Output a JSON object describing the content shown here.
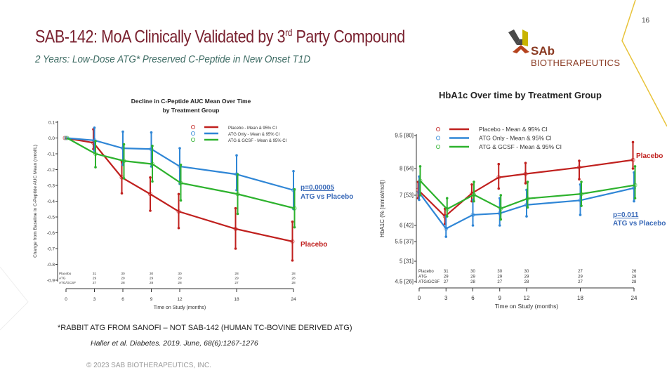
{
  "slide": {
    "page_number": "16",
    "title_pre": "SAB-142: MoA Clinically Validated by 3",
    "title_sup": "rd",
    "title_post": " Party Compound",
    "subtitle": "2 Years: Low-Dose ATG* Preserved C-Peptide in New Onset T1D",
    "logo": {
      "brand": "SAb",
      "name": "BIOTHERAPEUTICS"
    },
    "footnote": "*RABBIT ATG FROM SANOFI – NOT SAB-142 (HUMAN TC-BOVINE DERIVED ATG)",
    "citation": "Haller et al. Diabetes. 2019. June, 68(6):1267-1276",
    "copyright": "© 2023 SAB BIOTHERAPEUTICS, INC.",
    "colors": {
      "title": "#7a2230",
      "subtitle": "#3d6b63",
      "accent_line": "#e8c33a",
      "brand": "#8a3a22"
    }
  },
  "chart_data": [
    {
      "type": "line",
      "title": [
        "Decline in C-Peptide AUC Mean Over Time",
        "by Treatment Group"
      ],
      "xlabel": "Time on Study (months)",
      "ylabel": "Change from Baseline in C-Peptide AUC Mean (nmol/L)",
      "x": [
        0,
        3,
        6,
        9,
        12,
        18,
        24
      ],
      "x_ticks": [
        "0",
        "3",
        "6",
        "9",
        "12",
        "18",
        "24"
      ],
      "y_ticks": [
        "0.1",
        "0.0",
        "-0.1",
        "-0.2",
        "-0.3",
        "-0.4",
        "-0.5",
        "-0.6",
        "-0.7",
        "-0.8",
        "-0.9"
      ],
      "ylim": [
        -0.9,
        0.1
      ],
      "legend_position": "top-right",
      "grid": false,
      "series": [
        {
          "name": "Placebo - Mean & 95% CI",
          "color": "#c0201e",
          "values": [
            0,
            -0.03,
            -0.25,
            -0.355,
            -0.465,
            -0.575,
            -0.655
          ],
          "ci_low": [
            0,
            -0.07,
            -0.35,
            -0.46,
            -0.57,
            -0.7,
            -0.775
          ],
          "ci_high": [
            0,
            0.055,
            -0.15,
            -0.25,
            -0.355,
            -0.445,
            -0.53
          ]
        },
        {
          "name": "ATG Only - Mean & 95% CI",
          "color": "#2f86d6",
          "values": [
            0,
            -0.015,
            -0.065,
            -0.07,
            -0.18,
            -0.23,
            -0.33
          ],
          "ci_low": [
            0,
            -0.08,
            -0.17,
            -0.18,
            -0.29,
            -0.33,
            -0.45
          ],
          "ci_high": [
            0,
            0.065,
            0.04,
            0.035,
            -0.065,
            -0.11,
            -0.21
          ]
        },
        {
          "name": "ATG & GCSF - Mean & 95% CI",
          "color": "#2db22d",
          "values": [
            0,
            -0.1,
            -0.145,
            -0.165,
            -0.285,
            -0.355,
            -0.445
          ],
          "ci_low": [
            0,
            -0.185,
            -0.255,
            -0.275,
            -0.395,
            -0.48,
            -0.565
          ],
          "ci_high": [
            0,
            -0.02,
            -0.04,
            -0.05,
            -0.17,
            -0.23,
            -0.325
          ]
        }
      ],
      "n_table": [
        {
          "label": "Placebo",
          "counts": [
            "31",
            "30",
            "30",
            "30",
            "28",
            "28"
          ]
        },
        {
          "label": "ATG",
          "counts": [
            "29",
            "29",
            "29",
            "29",
            "29",
            "28"
          ]
        },
        {
          "label": "ATG/GCSF",
          "counts": [
            "27",
            "28",
            "28",
            "28",
            "27",
            "28"
          ]
        }
      ],
      "annotations": [
        {
          "text": "p=0.00005",
          "color": "#3a6ab8",
          "underline": true
        },
        {
          "text": "ATG vs Placebo",
          "color": "#3a6ab8"
        },
        {
          "text": "Placebo",
          "color": "#c0201e"
        }
      ]
    },
    {
      "type": "line",
      "title": [
        "HbA1c Over time by Treatment Group"
      ],
      "xlabel": "Time on Study (months)",
      "ylabel": "HbA1C (% [mmol/mol])",
      "x": [
        0,
        3,
        6,
        9,
        12,
        18,
        24
      ],
      "x_ticks": [
        "0",
        "3",
        "6",
        "9",
        "12",
        "18",
        "24"
      ],
      "y_tick_values": [
        9.5,
        8,
        7,
        6,
        5.5,
        5,
        4.5
      ],
      "y_ticks": [
        "9.5 [80]",
        "8 [64]",
        "7 [53]",
        "6 [42]",
        "5.5 [37]",
        "5 [31]",
        "4.5 [26]"
      ],
      "ylim": [
        4.5,
        9.5
      ],
      "legend_position": "top-left",
      "grid": false,
      "series": [
        {
          "name": "Placebo - Mean & 95% CI",
          "color": "#c0201e",
          "values": [
            7.2,
            6.3,
            7.07,
            7.67,
            7.8,
            8.05,
            8.39
          ],
          "ci_low": [
            6.9,
            6.05,
            6.8,
            7.25,
            7.45,
            7.6,
            8.0
          ],
          "ci_high": [
            7.5,
            6.55,
            7.4,
            8.2,
            8.25,
            8.35,
            9.2
          ]
        },
        {
          "name": "ATG Only - Mean & 95% CI",
          "color": "#2f86d6",
          "values": [
            7.1,
            5.9,
            6.35,
            6.4,
            6.68,
            6.83,
            7.27
          ],
          "ci_low": [
            6.85,
            5.65,
            6.0,
            6.0,
            6.3,
            6.35,
            6.8
          ],
          "ci_high": [
            7.7,
            6.3,
            6.85,
            6.9,
            7.2,
            7.4,
            7.85
          ]
        },
        {
          "name": "ATG & GCSF - Mean & 95% CI",
          "color": "#2db22d",
          "values": [
            7.54,
            6.54,
            7.02,
            6.56,
            6.89,
            7.05,
            7.38
          ],
          "ci_low": [
            7.0,
            6.3,
            6.8,
            6.2,
            6.6,
            6.65,
            6.9
          ],
          "ci_high": [
            8.1,
            6.9,
            7.5,
            7.0,
            7.5,
            7.5,
            8.1
          ]
        }
      ],
      "n_table": [
        {
          "label": "Placebo",
          "counts": [
            "31",
            "30",
            "30",
            "30",
            "27",
            "26"
          ]
        },
        {
          "label": "ATG",
          "counts": [
            "29",
            "29",
            "29",
            "29",
            "29",
            "28"
          ]
        },
        {
          "label": "ATG/GCSF",
          "counts": [
            "27",
            "28",
            "27",
            "28",
            "27",
            "28"
          ]
        }
      ],
      "annotations": [
        {
          "text": "Placebo",
          "color": "#c0201e"
        },
        {
          "text": "p=0.011",
          "color": "#3a6ab8",
          "underline": true
        },
        {
          "text": "ATG vs Placebo",
          "color": "#3a6ab8"
        }
      ]
    }
  ]
}
